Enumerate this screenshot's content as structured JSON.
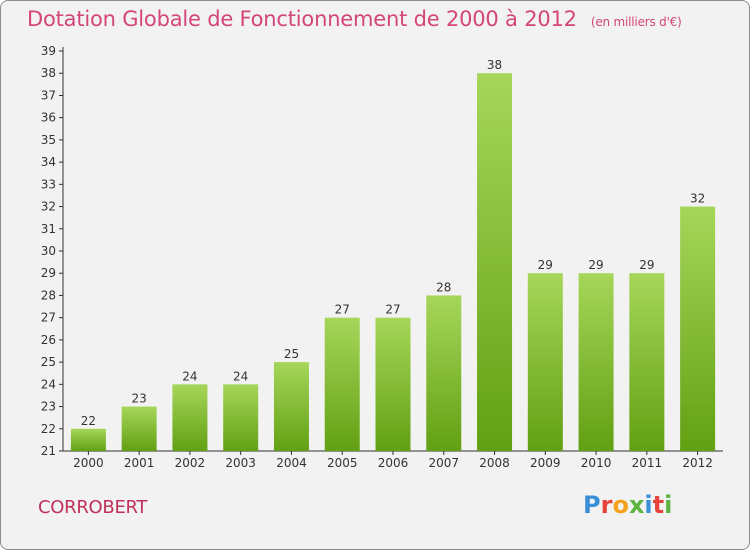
{
  "header": {
    "title": "Dotation Globale de Fonctionnement de 2000 à 2012",
    "unit": "(en milliers d'€)"
  },
  "footer": {
    "town": "CORROBERT",
    "logo_text": "Proxiti",
    "logo_colors": [
      "#3a8fd9",
      "#e8433a",
      "#f4a21b",
      "#5bb440",
      "#3a8fd9",
      "#e8433a",
      "#5bb440"
    ]
  },
  "colors": {
    "bar_top": "#a6d65a",
    "bar_bottom": "#62a013",
    "title": "#d4457a"
  },
  "chart_data": {
    "type": "bar",
    "categories": [
      "2000",
      "2001",
      "2002",
      "2003",
      "2004",
      "2005",
      "2006",
      "2007",
      "2008",
      "2009",
      "2010",
      "2011",
      "2012"
    ],
    "values": [
      22,
      23,
      24,
      24,
      25,
      27,
      27,
      28,
      38,
      29,
      29,
      29,
      32
    ],
    "ylim": [
      21,
      39
    ],
    "yticks": [
      21,
      22,
      23,
      24,
      25,
      26,
      27,
      28,
      29,
      30,
      31,
      32,
      33,
      34,
      35,
      36,
      37,
      38,
      39
    ],
    "grid": false,
    "legend": "none"
  }
}
